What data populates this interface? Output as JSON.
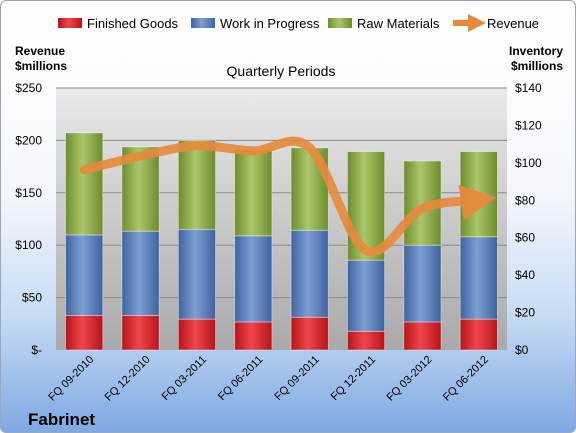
{
  "chart_data": {
    "type": "bar",
    "stacked": true,
    "title": "Quarterly Periods",
    "company": "Fabrinet",
    "categories": [
      "FQ 09-2010",
      "FQ 12-2010",
      "FQ 03-2011",
      "FQ 06-2011",
      "FQ 09-2011",
      "FQ 12-2011",
      "FQ 03-2012",
      "FQ 06-2012"
    ],
    "left_axis": {
      "label_line1": "Revenue",
      "label_line2": "$millions",
      "min": 0,
      "max": 250,
      "step": 50,
      "ticks": [
        "$-",
        "$50",
        "$100",
        "$150",
        "$200",
        "$250"
      ]
    },
    "right_axis": {
      "label_line1": "Inventory",
      "label_line2": "$millions",
      "min": 0,
      "max": 140,
      "step": 20,
      "ticks": [
        "$0",
        "$20",
        "$40",
        "$60",
        "$80",
        "$100",
        "$120",
        "$140"
      ]
    },
    "grid": true,
    "legend_position": "top",
    "series": [
      {
        "name": "Finished Goods",
        "type": "bar",
        "axis": "right",
        "color": "#d9252b",
        "values": [
          18.5,
          18.5,
          16.5,
          15,
          17.5,
          10,
          15,
          16.5
        ]
      },
      {
        "name": "Work in Progress",
        "type": "bar",
        "axis": "right",
        "color": "#5a7fb8",
        "values": [
          43,
          45,
          48,
          46,
          46.5,
          38,
          41,
          44
        ]
      },
      {
        "name": "Raw Materials",
        "type": "bar",
        "axis": "right",
        "color": "#8fb04a",
        "values": [
          54.5,
          45,
          47.5,
          46,
          44,
          58,
          45,
          45.5
        ]
      },
      {
        "name": "Revenue",
        "type": "line",
        "axis": "left",
        "color": "#e8893a",
        "values": [
          172,
          185,
          195,
          190,
          193,
          95,
          135,
          143
        ]
      }
    ]
  }
}
